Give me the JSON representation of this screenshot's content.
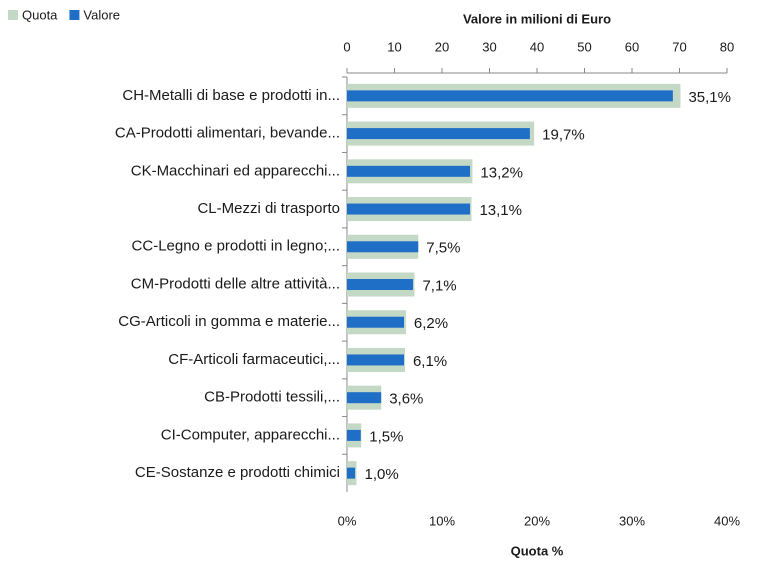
{
  "chart_data": {
    "type": "bar",
    "orientation": "horizontal",
    "categories": [
      "CH-Metalli di base e prodotti in...",
      "CA-Prodotti alimentari, bevande...",
      "CK-Macchinari ed apparecchi...",
      "CL-Mezzi di trasporto",
      "CC-Legno e prodotti in legno;...",
      "CM-Prodotti delle altre attività...",
      "CG-Articoli in gomma e materie...",
      "CF-Articoli farmaceutici,...",
      "CB-Prodotti tessili,...",
      "CI-Computer, apparecchi...",
      "CE-Sostanze e prodotti chimici"
    ],
    "series": [
      {
        "name": "Quota",
        "color": "#c3d8c5",
        "axis": "x",
        "values": [
          35.1,
          19.7,
          13.2,
          13.1,
          7.5,
          7.1,
          6.2,
          6.1,
          3.6,
          1.5,
          1.0
        ],
        "value_labels": [
          "35,1%",
          "19,7%",
          "13,2%",
          "13,1%",
          "7,5%",
          "7,1%",
          "6,2%",
          "6,1%",
          "3,6%",
          "1,5%",
          "1,0%"
        ]
      },
      {
        "name": "Valore",
        "color": "#1f6fc6",
        "axis": "x2",
        "values": [
          68.6,
          38.5,
          25.9,
          25.9,
          15.0,
          13.9,
          12.0,
          12.0,
          7.2,
          2.9,
          1.7
        ]
      }
    ],
    "x_label": "Quota %",
    "x2_label": "Valore in milioni di Euro",
    "xlim": [
      0,
      40
    ],
    "xticks": [
      {
        "value": 0,
        "label": "0%"
      },
      {
        "value": 10,
        "label": "10%"
      },
      {
        "value": 20,
        "label": "20%"
      },
      {
        "value": 30,
        "label": "30%"
      },
      {
        "value": 40,
        "label": "40%"
      }
    ],
    "x2lim": [
      0,
      80
    ],
    "x2ticks": [
      0,
      10,
      20,
      30,
      40,
      50,
      60,
      70,
      80
    ],
    "legend": "top-left"
  }
}
